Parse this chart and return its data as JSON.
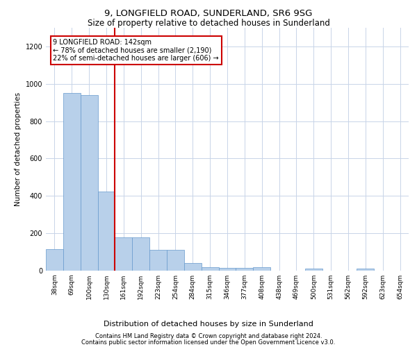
{
  "title1": "9, LONGFIELD ROAD, SUNDERLAND, SR6 9SG",
  "title2": "Size of property relative to detached houses in Sunderland",
  "xlabel": "Distribution of detached houses by size in Sunderland",
  "ylabel": "Number of detached properties",
  "categories": [
    "38sqm",
    "69sqm",
    "100sqm",
    "130sqm",
    "161sqm",
    "192sqm",
    "223sqm",
    "254sqm",
    "284sqm",
    "315sqm",
    "346sqm",
    "377sqm",
    "408sqm",
    "438sqm",
    "469sqm",
    "500sqm",
    "531sqm",
    "562sqm",
    "592sqm",
    "623sqm",
    "654sqm"
  ],
  "values": [
    115,
    950,
    940,
    425,
    180,
    180,
    110,
    110,
    40,
    20,
    15,
    15,
    20,
    0,
    0,
    10,
    0,
    0,
    10,
    0,
    0
  ],
  "bar_color": "#b8d0ea",
  "bar_edge_color": "#6699cc",
  "red_line_index": 3,
  "annotation_line1": "9 LONGFIELD ROAD: 142sqm",
  "annotation_line2": "← 78% of detached houses are smaller (2,190)",
  "annotation_line3": "22% of semi-detached houses are larger (606) →",
  "annotation_box_facecolor": "#ffffff",
  "annotation_box_edgecolor": "#cc0000",
  "red_line_color": "#cc0000",
  "ylim": [
    0,
    1300
  ],
  "yticks": [
    0,
    200,
    400,
    600,
    800,
    1000,
    1200
  ],
  "footer1": "Contains HM Land Registry data © Crown copyright and database right 2024.",
  "footer2": "Contains public sector information licensed under the Open Government Licence v3.0.",
  "bg_color": "#ffffff",
  "grid_color": "#c8d4e8",
  "title1_fontsize": 9.5,
  "title2_fontsize": 8.5,
  "ylabel_fontsize": 7.5,
  "xlabel_fontsize": 8,
  "tick_fontsize": 6.5,
  "annotation_fontsize": 7,
  "footer_fontsize": 6
}
